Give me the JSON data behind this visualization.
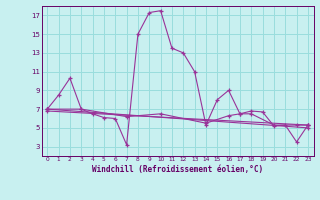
{
  "title": "",
  "xlabel": "Windchill (Refroidissement éolien,°C)",
  "bg_color": "#c8f0f0",
  "line_color": "#993399",
  "grid_color": "#99dddd",
  "text_color": "#660066",
  "spine_color": "#660066",
  "xlim": [
    -0.5,
    23.5
  ],
  "ylim": [
    2,
    18
  ],
  "yticks": [
    3,
    5,
    7,
    9,
    11,
    13,
    15,
    17
  ],
  "xticks": [
    0,
    1,
    2,
    3,
    4,
    5,
    6,
    7,
    8,
    9,
    10,
    11,
    12,
    13,
    14,
    15,
    16,
    17,
    18,
    19,
    20,
    21,
    22,
    23
  ],
  "series1_x": [
    0,
    1,
    2,
    3,
    4,
    5,
    6,
    7,
    8,
    9,
    10,
    11,
    12,
    13,
    14,
    15,
    16,
    17,
    18,
    19,
    20,
    21,
    22,
    23
  ],
  "series1_y": [
    7.0,
    8.5,
    10.3,
    7.0,
    6.5,
    6.1,
    6.0,
    3.2,
    15.0,
    17.3,
    17.5,
    13.5,
    13.0,
    11.0,
    5.3,
    8.0,
    9.0,
    6.5,
    6.8,
    6.7,
    5.2,
    5.3,
    3.5,
    5.3
  ],
  "series2_x": [
    0,
    3,
    7,
    10,
    14,
    16,
    17,
    18,
    20,
    22,
    23
  ],
  "series2_y": [
    7.0,
    7.0,
    6.2,
    6.5,
    5.5,
    6.3,
    6.5,
    6.5,
    5.3,
    5.3,
    5.3
  ],
  "series3_x": [
    0,
    23
  ],
  "series3_y": [
    7.0,
    5.0
  ],
  "series4_x": [
    0,
    23
  ],
  "series4_y": [
    6.8,
    5.3
  ]
}
